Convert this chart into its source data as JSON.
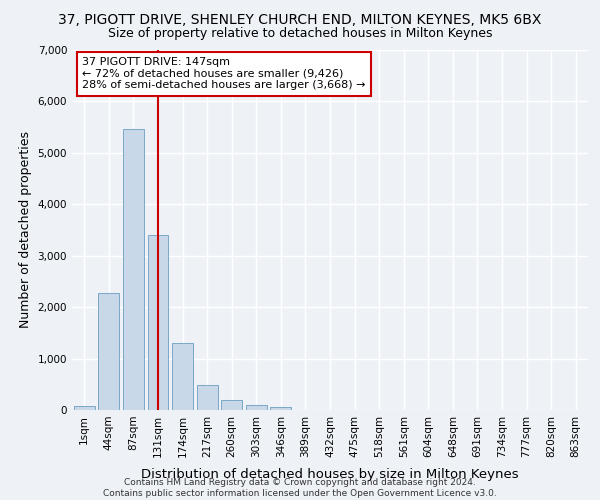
{
  "title": "37, PIGOTT DRIVE, SHENLEY CHURCH END, MILTON KEYNES, MK5 6BX",
  "subtitle": "Size of property relative to detached houses in Milton Keynes",
  "xlabel": "Distribution of detached houses by size in Milton Keynes",
  "ylabel": "Number of detached properties",
  "footer1": "Contains HM Land Registry data © Crown copyright and database right 2024.",
  "footer2": "Contains public sector information licensed under the Open Government Licence v3.0.",
  "bar_labels": [
    "1sqm",
    "44sqm",
    "87sqm",
    "131sqm",
    "174sqm",
    "217sqm",
    "260sqm",
    "303sqm",
    "346sqm",
    "389sqm",
    "432sqm",
    "475sqm",
    "518sqm",
    "561sqm",
    "604sqm",
    "648sqm",
    "691sqm",
    "734sqm",
    "777sqm",
    "820sqm",
    "863sqm"
  ],
  "bar_values": [
    70,
    2270,
    5470,
    3400,
    1310,
    480,
    190,
    100,
    55,
    0,
    0,
    0,
    0,
    0,
    0,
    0,
    0,
    0,
    0,
    0,
    0
  ],
  "bar_color": "#c8d8e8",
  "bar_edge_color": "#7aa8c8",
  "vline_x": 3,
  "vline_color": "#cc0000",
  "annotation_text": "37 PIGOTT DRIVE: 147sqm\n← 72% of detached houses are smaller (9,426)\n28% of semi-detached houses are larger (3,668) →",
  "annotation_box_color": "#ffffff",
  "annotation_box_edge": "#cc0000",
  "ylim": [
    0,
    7000
  ],
  "yticks": [
    0,
    1000,
    2000,
    3000,
    4000,
    5000,
    6000,
    7000
  ],
  "background_color": "#eef2f7",
  "grid_color": "#ffffff",
  "title_fontsize": 10,
  "subtitle_fontsize": 9,
  "axis_label_fontsize": 9,
  "tick_fontsize": 7.5,
  "footer_fontsize": 6.5,
  "annotation_fontsize": 8
}
